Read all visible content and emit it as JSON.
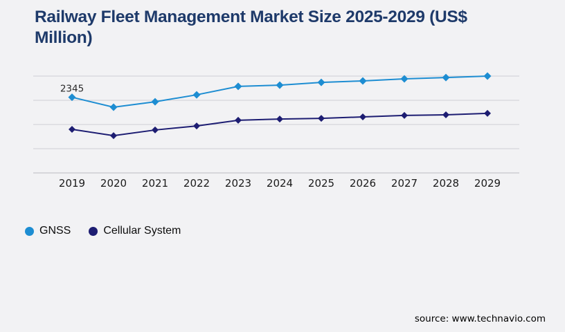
{
  "page": {
    "background": "#f2f2f4",
    "title": "Railway Fleet Management Market Size 2025-2029 (US$ Million)",
    "title_color": "#1e3a6a",
    "source": "source: www.technavio.com"
  },
  "chart_data": {
    "type": "line",
    "title": "Railway Fleet Management Market Size 2025-2029 (US$ Million)",
    "x": [
      "2019",
      "2020",
      "2021",
      "2022",
      "2023",
      "2024",
      "2025",
      "2026",
      "2027",
      "2028",
      "2029"
    ],
    "xlabel": "",
    "ylabel": "",
    "ylim": [
      0,
      3000
    ],
    "grid": true,
    "gridline_step": 750,
    "y_axis_labels_visible": false,
    "legend_position": "bottom-left",
    "series": [
      {
        "name": "GNSS",
        "color": "#1d8dd2",
        "marker": "diamond",
        "values": [
          2345,
          2035,
          2205,
          2420,
          2680,
          2720,
          2805,
          2850,
          2915,
          2955,
          3000
        ]
      },
      {
        "name": "Cellular System",
        "color": "#1d1d72",
        "marker": "diamond",
        "values": [
          1350,
          1155,
          1330,
          1455,
          1630,
          1670,
          1690,
          1735,
          1780,
          1800,
          1845
        ]
      }
    ],
    "point_label": {
      "series_index": 0,
      "point_index": 0,
      "text": "2345"
    },
    "colors": {
      "gridline": "#cdcfd4",
      "axis_line": "#b9bbc0",
      "tick_label": "#1b1b1b",
      "point_label": "#2a2a2a"
    }
  }
}
